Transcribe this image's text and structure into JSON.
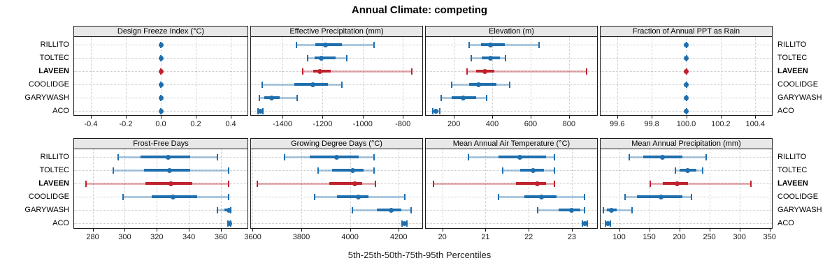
{
  "title": "Annual Climate: competing",
  "xlabel": "5th-25th-50th-75th-95th Percentiles",
  "colors": {
    "series_normal": "#1f6fae",
    "series_highlight": "#bf212d",
    "band_normal": "rgba(31,111,174,0.35)",
    "band_highlight": "rgba(191,33,45,0.35)",
    "strip_background": "#e8e8e8",
    "grid": "#c9c9c9",
    "border": "#1a1a1a"
  },
  "chart_data": {
    "type": "trellis-percentile-dotplot",
    "percentiles_shown": [
      5,
      25,
      50,
      75,
      95
    ],
    "sites": [
      "RILLITO",
      "TOLTEC",
      "LAVEEN",
      "COOLIDGE",
      "GARYWASH",
      "ACO"
    ],
    "highlighted_site": "LAVEEN",
    "grid": "dotted",
    "panels": [
      {
        "title": "Design Freeze Index (°C)",
        "row": 0,
        "col": 0,
        "axis": {
          "min": -0.5,
          "max": 0.5,
          "tick_values": [
            -0.4,
            -0.2,
            0.0,
            0.2,
            0.4
          ],
          "tick_labels": [
            "-0.4",
            "-0.2",
            "0.0",
            "0.2",
            "0.4"
          ]
        },
        "values": [
          [
            0,
            0,
            0,
            0,
            0
          ],
          [
            0,
            0,
            0,
            0,
            0
          ],
          [
            0,
            0,
            0,
            0,
            0
          ],
          [
            0,
            0,
            0,
            0,
            0
          ],
          [
            0,
            0,
            0,
            0,
            0
          ],
          [
            0,
            0,
            0,
            0,
            0
          ]
        ]
      },
      {
        "title": "Effective Precipitation (mm)",
        "row": 0,
        "col": 1,
        "axis": {
          "min": -1560,
          "max": -700,
          "tick_values": [
            -1400,
            -1200,
            -1000,
            -800
          ],
          "tick_labels": [
            "-1400",
            "-1200",
            "-1000",
            "-800"
          ]
        },
        "values": [
          [
            -1330,
            -1235,
            -1185,
            -1105,
            -945
          ],
          [
            -1275,
            -1240,
            -1205,
            -1135,
            -1080
          ],
          [
            -1300,
            -1245,
            -1215,
            -1160,
            -755
          ],
          [
            -1500,
            -1340,
            -1250,
            -1175,
            -1105
          ],
          [
            -1515,
            -1490,
            -1455,
            -1415,
            -1325
          ],
          [
            -1522,
            -1515,
            -1510,
            -1505,
            -1498
          ]
        ]
      },
      {
        "title": "Elevation (m)",
        "row": 0,
        "col": 2,
        "axis": {
          "min": 50,
          "max": 950,
          "tick_values": [
            200,
            400,
            600,
            800
          ],
          "tick_labels": [
            "200",
            "400",
            "600",
            "800"
          ]
        },
        "values": [
          [
            280,
            340,
            390,
            465,
            645
          ],
          [
            290,
            345,
            390,
            440,
            470
          ],
          [
            270,
            315,
            360,
            410,
            890
          ],
          [
            190,
            280,
            330,
            420,
            490
          ],
          [
            135,
            190,
            250,
            315,
            370
          ],
          [
            90,
            98,
            105,
            115,
            125
          ]
        ]
      },
      {
        "title": "Fraction of Annual PPT as Rain",
        "row": 0,
        "col": 3,
        "axis": {
          "min": 99.5,
          "max": 100.5,
          "tick_values": [
            99.6,
            99.8,
            100.0,
            100.2,
            100.4
          ],
          "tick_labels": [
            "99.6",
            "99.8",
            "100.0",
            "100.2",
            "100.4"
          ]
        },
        "values": [
          [
            100,
            100,
            100,
            100,
            100
          ],
          [
            100,
            100,
            100,
            100,
            100
          ],
          [
            100,
            100,
            100,
            100,
            100
          ],
          [
            100,
            100,
            100,
            100,
            100
          ],
          [
            100,
            100,
            100,
            100,
            100
          ],
          [
            100,
            100,
            100,
            100,
            100
          ]
        ]
      },
      {
        "title": "Frost-Free Days",
        "row": 1,
        "col": 0,
        "axis": {
          "min": 268,
          "max": 377,
          "tick_values": [
            280,
            300,
            320,
            340,
            360
          ],
          "tick_labels": [
            "280",
            "300",
            "320",
            "340",
            "360"
          ]
        },
        "values": [
          [
            296,
            310,
            327,
            341,
            358
          ],
          [
            293,
            312,
            328,
            341,
            365
          ],
          [
            276,
            313,
            329,
            342,
            365
          ],
          [
            299,
            317,
            330,
            345,
            365
          ],
          [
            358,
            362,
            365,
            365.5,
            366
          ],
          [
            364.5,
            365,
            365.5,
            366,
            366
          ]
        ]
      },
      {
        "title": "Growing Degree Days (°C)",
        "row": 1,
        "col": 1,
        "axis": {
          "min": 3590,
          "max": 4300,
          "tick_values": [
            3600,
            3800,
            4000,
            4200
          ],
          "tick_labels": [
            "3600",
            "3800",
            "4000",
            "4200"
          ]
        },
        "values": [
          [
            3730,
            3835,
            3945,
            4035,
            4100
          ],
          [
            3870,
            3925,
            4010,
            4055,
            4100
          ],
          [
            3620,
            3915,
            4020,
            4050,
            4105
          ],
          [
            3855,
            3945,
            4035,
            4075,
            4225
          ],
          [
            4010,
            4110,
            4170,
            4210,
            4250
          ],
          [
            4215,
            4220,
            4225,
            4230,
            4235
          ]
        ]
      },
      {
        "title": "Mean Annual Air Temperature (°C)",
        "row": 1,
        "col": 2,
        "axis": {
          "min": 19.6,
          "max": 23.6,
          "tick_values": [
            20,
            21,
            22,
            23
          ],
          "tick_labels": [
            "20",
            "21",
            "22",
            "23"
          ]
        },
        "values": [
          [
            20.6,
            21.3,
            21.8,
            22.4,
            22.6
          ],
          [
            21.4,
            21.8,
            22.1,
            22.35,
            22.6
          ],
          [
            19.8,
            21.7,
            22.2,
            22.4,
            22.6
          ],
          [
            21.3,
            21.9,
            22.3,
            22.65,
            23.3
          ],
          [
            22.2,
            22.7,
            23.0,
            23.2,
            23.3
          ],
          [
            23.25,
            23.28,
            23.3,
            23.32,
            23.35
          ]
        ]
      },
      {
        "title": "Mean Annual Precipitation (mm)",
        "row": 1,
        "col": 3,
        "axis": {
          "min": 68,
          "max": 355,
          "tick_values": [
            100,
            150,
            200,
            250,
            300,
            350
          ],
          "tick_labels": [
            "100",
            "150",
            "200",
            "250",
            "300",
            "350"
          ]
        },
        "values": [
          [
            117,
            140,
            172,
            205,
            245
          ],
          [
            193,
            200,
            214,
            228,
            239
          ],
          [
            152,
            172,
            196,
            214,
            319
          ],
          [
            110,
            130,
            170,
            205,
            220
          ],
          [
            74,
            80,
            87,
            96,
            122
          ],
          [
            77,
            79,
            81,
            83,
            85
          ]
        ]
      }
    ]
  }
}
